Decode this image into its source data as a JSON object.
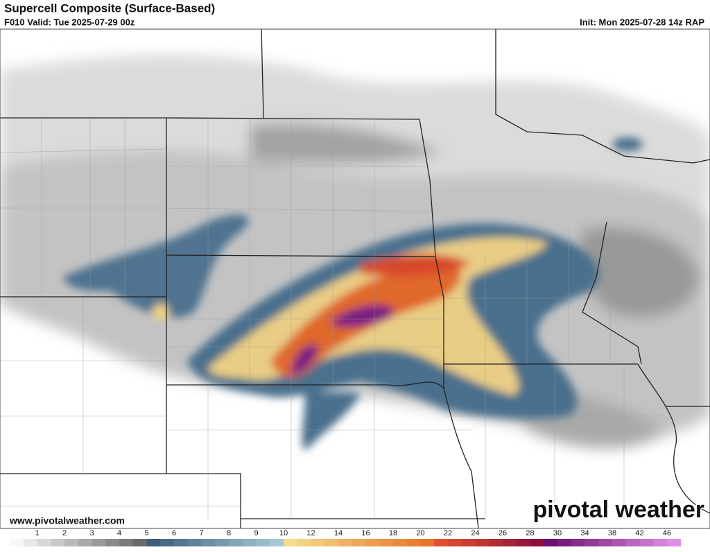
{
  "header": {
    "title": "Supercell Composite (Surface-Based)",
    "valid": "F010 Valid: Tue 2025-07-29 00z",
    "init": "Init: Mon 2025-07-28 14z RAP"
  },
  "map": {
    "watermark": "www.pivotalweather.com",
    "logo": "pivotal weather"
  },
  "colorbar": {
    "labels": [
      1,
      2,
      3,
      4,
      5,
      6,
      7,
      8,
      9,
      10,
      12,
      14,
      16,
      18,
      20,
      22,
      24,
      26,
      28,
      30,
      34,
      38,
      42,
      46
    ]
  }
}
